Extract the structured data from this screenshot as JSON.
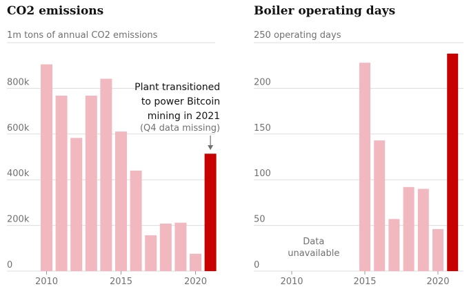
{
  "chart_data": [
    {
      "type": "bar",
      "title": "CO2 emissions",
      "ylabel": "1m tons of annual CO2 emissions",
      "xlabel": "",
      "x": [
        2010,
        2011,
        2012,
        2013,
        2014,
        2015,
        2016,
        2017,
        2018,
        2019,
        2020,
        2021
      ],
      "values": [
        905000,
        768000,
        583000,
        768000,
        842000,
        611000,
        440000,
        157000,
        208000,
        212000,
        76000,
        514000
      ],
      "highlight_x": 2021,
      "ylim": [
        0,
        1000000
      ],
      "yticks": [
        0,
        200000,
        400000,
        600000,
        800000
      ],
      "ytick_labels": [
        "0",
        "200k",
        "400k",
        "600k",
        "800k"
      ],
      "xticks": [
        2010,
        2015,
        2020
      ],
      "xtick_labels": [
        "2010",
        "2015",
        "2020"
      ],
      "annotation": {
        "lines": [
          "Plant transitioned",
          "to power Bitcoin",
          "mining in 2021"
        ],
        "note": "(Q4 data missing)",
        "target_x": 2021
      },
      "grid": true,
      "colors": {
        "bar": "#f2b8bf",
        "highlight": "#c70000",
        "grid": "#dcdcdc",
        "axis_text": "#707070"
      }
    },
    {
      "type": "bar",
      "title": "Boiler operating days",
      "ylabel": "250 operating days",
      "xlabel": "",
      "x": [
        2010,
        2011,
        2012,
        2013,
        2014,
        2015,
        2016,
        2017,
        2018,
        2019,
        2020,
        2021
      ],
      "values": [
        null,
        null,
        null,
        null,
        null,
        228,
        143,
        57,
        92,
        90,
        46,
        238
      ],
      "highlight_x": 2021,
      "ylim": [
        0,
        250
      ],
      "yticks": [
        0,
        50,
        100,
        150,
        200
      ],
      "ytick_labels": [
        "0",
        "50",
        "100",
        "150",
        "200"
      ],
      "xticks": [
        2010,
        2015,
        2020
      ],
      "xtick_labels": [
        "2010",
        "2015",
        "2020"
      ],
      "missing_note": [
        "Data",
        "unavailable"
      ],
      "grid": true,
      "colors": {
        "bar": "#f2b8bf",
        "highlight": "#c70000",
        "grid": "#dcdcdc",
        "axis_text": "#707070"
      }
    }
  ]
}
